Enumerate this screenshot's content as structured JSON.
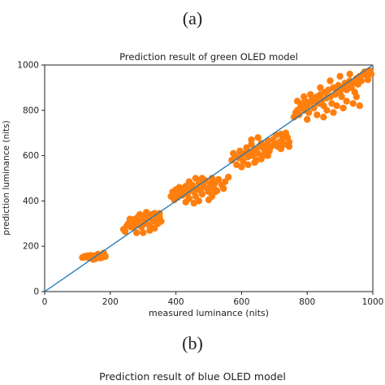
{
  "panel_labels": {
    "a": "(a)",
    "b": "(b)"
  },
  "next_chart_title": "Prediction result of blue OLED model",
  "chart_data": {
    "type": "scatter",
    "title": "Prediction result of green OLED model",
    "xlabel": "measured luminance (nits)",
    "ylabel": "prediction luminance (nits)",
    "xlim": [
      0,
      1000
    ],
    "ylim": [
      0,
      1000
    ],
    "xticks": [
      "0",
      "200",
      "400",
      "600",
      "800",
      "1000"
    ],
    "yticks": [
      "0",
      "200",
      "400",
      "600",
      "800",
      "1000"
    ],
    "grid": false,
    "colors": {
      "points": "#ff7f0e",
      "reference_line": "#1f77b4"
    },
    "reference_line": {
      "x": [
        0,
        1000
      ],
      "y": [
        0,
        1000
      ]
    },
    "series": [
      {
        "values": [
          [
            115,
            150
          ],
          [
            125,
            152
          ],
          [
            135,
            148
          ],
          [
            145,
            155
          ],
          [
            150,
            158
          ],
          [
            160,
            150
          ],
          [
            165,
            160
          ],
          [
            175,
            162
          ],
          [
            180,
            170
          ],
          [
            170,
            148
          ],
          [
            155,
            145
          ],
          [
            140,
            160
          ],
          [
            130,
            158
          ],
          [
            185,
            155
          ],
          [
            148,
            142
          ],
          [
            162,
            165
          ],
          [
            120,
            155
          ],
          [
            176,
            152
          ],
          [
            240,
            275
          ],
          [
            250,
            290
          ],
          [
            255,
            300
          ],
          [
            262,
            285
          ],
          [
            270,
            305
          ],
          [
            275,
            320
          ],
          [
            280,
            295
          ],
          [
            285,
            330
          ],
          [
            290,
            310
          ],
          [
            295,
            285
          ],
          [
            300,
            315
          ],
          [
            305,
            335
          ],
          [
            310,
            300
          ],
          [
            315,
            325
          ],
          [
            320,
            290
          ],
          [
            325,
            340
          ],
          [
            330,
            310
          ],
          [
            335,
            345
          ],
          [
            340,
            320
          ],
          [
            345,
            300
          ],
          [
            350,
            330
          ],
          [
            355,
            310
          ],
          [
            260,
            320
          ],
          [
            245,
            265
          ],
          [
            300,
            260
          ],
          [
            320,
            270
          ],
          [
            335,
            280
          ],
          [
            280,
            260
          ],
          [
            270,
            285
          ],
          [
            310,
            350
          ],
          [
            350,
            345
          ],
          [
            290,
            340
          ],
          [
            385,
            420
          ],
          [
            390,
            440
          ],
          [
            395,
            430
          ],
          [
            400,
            450
          ],
          [
            405,
            415
          ],
          [
            410,
            435
          ],
          [
            415,
            455
          ],
          [
            420,
            425
          ],
          [
            425,
            445
          ],
          [
            430,
            465
          ],
          [
            435,
            430
          ],
          [
            440,
            410
          ],
          [
            445,
            450
          ],
          [
            450,
            470
          ],
          [
            455,
            440
          ],
          [
            460,
            420
          ],
          [
            465,
            455
          ],
          [
            470,
            480
          ],
          [
            475,
            445
          ],
          [
            480,
            430
          ],
          [
            485,
            465
          ],
          [
            490,
            490
          ],
          [
            495,
            455
          ],
          [
            500,
            440
          ],
          [
            505,
            475
          ],
          [
            510,
            500
          ],
          [
            515,
            460
          ],
          [
            520,
            480
          ],
          [
            525,
            445
          ],
          [
            530,
            495
          ],
          [
            540,
            470
          ],
          [
            550,
            485
          ],
          [
            560,
            505
          ],
          [
            470,
            400
          ],
          [
            455,
            390
          ],
          [
            430,
            395
          ],
          [
            500,
            405
          ],
          [
            510,
            420
          ],
          [
            480,
            500
          ],
          [
            460,
            500
          ],
          [
            440,
            485
          ],
          [
            520,
            440
          ],
          [
            545,
            455
          ],
          [
            410,
            460
          ],
          [
            395,
            405
          ],
          [
            570,
            580
          ],
          [
            580,
            600
          ],
          [
            585,
            560
          ],
          [
            590,
            590
          ],
          [
            595,
            620
          ],
          [
            600,
            600
          ],
          [
            605,
            575
          ],
          [
            610,
            610
          ],
          [
            615,
            635
          ],
          [
            620,
            595
          ],
          [
            625,
            615
          ],
          [
            630,
            650
          ],
          [
            635,
            600
          ],
          [
            640,
            625
          ],
          [
            645,
            580
          ],
          [
            650,
            610
          ],
          [
            655,
            640
          ],
          [
            660,
            655
          ],
          [
            665,
            600
          ],
          [
            670,
            625
          ],
          [
            675,
            645
          ],
          [
            680,
            665
          ],
          [
            685,
            620
          ],
          [
            690,
            640
          ],
          [
            695,
            670
          ],
          [
            700,
            650
          ],
          [
            705,
            690
          ],
          [
            710,
            640
          ],
          [
            715,
            660
          ],
          [
            720,
            695
          ],
          [
            725,
            675
          ],
          [
            730,
            650
          ],
          [
            735,
            700
          ],
          [
            740,
            680
          ],
          [
            745,
            660
          ],
          [
            600,
            550
          ],
          [
            620,
            560
          ],
          [
            640,
            570
          ],
          [
            660,
            585
          ],
          [
            680,
            600
          ],
          [
            650,
            680
          ],
          [
            630,
            670
          ],
          [
            720,
            630
          ],
          [
            745,
            640
          ],
          [
            575,
            610
          ],
          [
            760,
            770
          ],
          [
            765,
            790
          ],
          [
            770,
            800
          ],
          [
            775,
            780
          ],
          [
            780,
            815
          ],
          [
            785,
            830
          ],
          [
            790,
            800
          ],
          [
            795,
            840
          ],
          [
            800,
            820
          ],
          [
            805,
            790
          ],
          [
            810,
            835
          ],
          [
            815,
            855
          ],
          [
            820,
            810
          ],
          [
            825,
            840
          ],
          [
            830,
            860
          ],
          [
            835,
            830
          ],
          [
            840,
            870
          ],
          [
            845,
            845
          ],
          [
            850,
            820
          ],
          [
            855,
            880
          ],
          [
            860,
            855
          ],
          [
            865,
            890
          ],
          [
            870,
            860
          ],
          [
            875,
            830
          ],
          [
            880,
            900
          ],
          [
            885,
            870
          ],
          [
            890,
            885
          ],
          [
            895,
            910
          ],
          [
            900,
            880
          ],
          [
            905,
            860
          ],
          [
            910,
            900
          ],
          [
            915,
            920
          ],
          [
            920,
            890
          ],
          [
            925,
            905
          ],
          [
            930,
            930
          ],
          [
            935,
            900
          ],
          [
            940,
            920
          ],
          [
            945,
            880
          ],
          [
            950,
            940
          ],
          [
            955,
            915
          ],
          [
            960,
            950
          ],
          [
            965,
            930
          ],
          [
            970,
            960
          ],
          [
            975,
            970
          ],
          [
            980,
            955
          ],
          [
            985,
            935
          ],
          [
            990,
            975
          ],
          [
            995,
            960
          ],
          [
            800,
            760
          ],
          [
            830,
            780
          ],
          [
            860,
            800
          ],
          [
            890,
            820
          ],
          [
            920,
            840
          ],
          [
            950,
            860
          ],
          [
            810,
            870
          ],
          [
            840,
            900
          ],
          [
            870,
            930
          ],
          [
            900,
            950
          ],
          [
            930,
            960
          ],
          [
            770,
            840
          ],
          [
            790,
            860
          ],
          [
            850,
            770
          ],
          [
            880,
            790
          ],
          [
            910,
            810
          ],
          [
            940,
            830
          ],
          [
            960,
            820
          ]
        ]
      }
    ]
  }
}
